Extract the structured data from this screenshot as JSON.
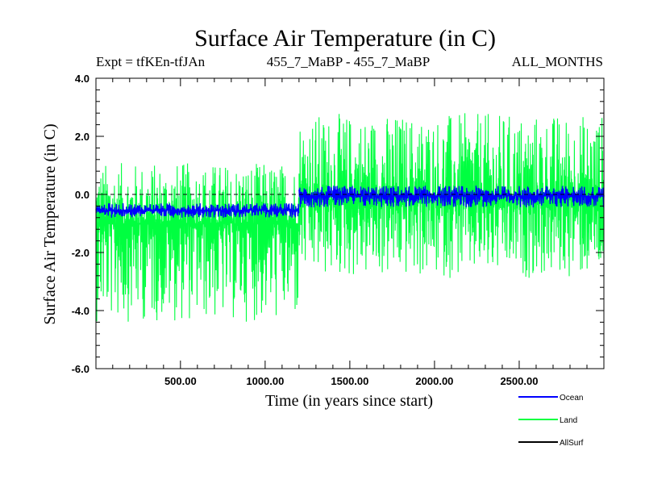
{
  "chart_data": {
    "type": "line",
    "title": "Surface Air Temperature (in C)",
    "subtitle_left": "Expt = tfKEn-tfJAn",
    "subtitle_center": "455_7_MaBP - 455_7_MaBP",
    "subtitle_right": "ALL_MONTHS",
    "xlabel": "Time (in years since start)",
    "ylabel": "Surface Air Temperature (in C)",
    "xlim": [
      1,
      3000
    ],
    "ylim": [
      -6.0,
      4.0
    ],
    "x_ticks": [
      500,
      1000,
      1500,
      2000,
      2500
    ],
    "x_tick_labels": [
      "500.00",
      "1000.00",
      "1500.00",
      "2000.00",
      "2500.00"
    ],
    "y_ticks": [
      4.0,
      2.0,
      0.0,
      -2.0,
      -4.0,
      -6.0
    ],
    "y_tick_labels": [
      "4.0",
      "2.0",
      "0.0",
      "-2.0",
      "-4.0",
      "-6.0"
    ],
    "reference_line": 0.0,
    "legend_placement": "bottom-right",
    "series": [
      {
        "name": "Land",
        "color": "#00ff40",
        "segments": [
          {
            "x": [
              1,
              1200
            ],
            "mean": -1.0,
            "range": [
              -4.4,
              1.1
            ]
          },
          {
            "x": [
              1200,
              3000
            ],
            "mean": -0.2,
            "range": [
              -2.9,
              2.8
            ]
          }
        ]
      },
      {
        "name": "Ocean",
        "color": "#0000ff",
        "segments": [
          {
            "x": [
              1,
              1200
            ],
            "mean": -0.55,
            "range": [
              -0.8,
              -0.3
            ]
          },
          {
            "x": [
              1200,
              3000
            ],
            "mean": -0.05,
            "range": [
              -0.45,
              0.3
            ]
          }
        ]
      },
      {
        "name": "AllSurf",
        "color": "#000000",
        "segments": []
      }
    ]
  }
}
